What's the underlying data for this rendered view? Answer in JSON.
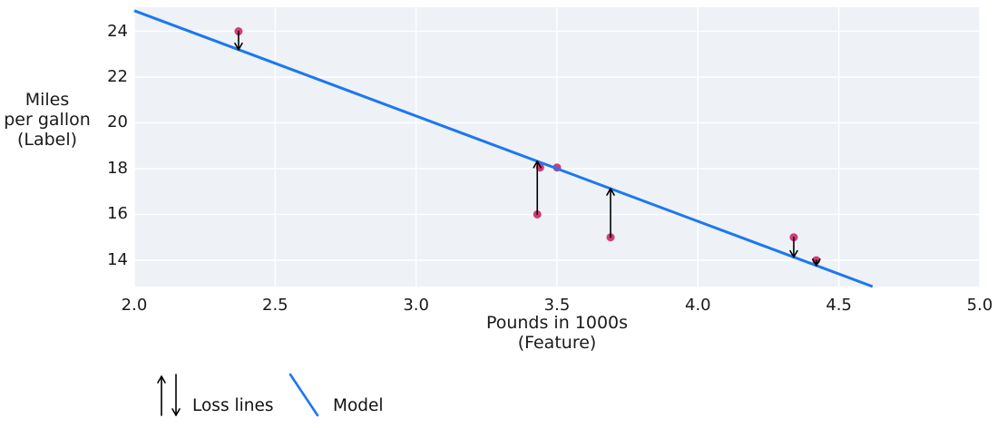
{
  "chart_data": {
    "type": "scatter",
    "xlabel_lines": [
      "Pounds in 1000s",
      "(Feature)"
    ],
    "ylabel_lines": [
      "Miles",
      "per gallon",
      "(Label)"
    ],
    "x_ticks": [
      {
        "v": 2.0,
        "label": "2.0"
      },
      {
        "v": 2.5,
        "label": "2.5"
      },
      {
        "v": 3.0,
        "label": "3.0"
      },
      {
        "v": 3.5,
        "label": "3.5"
      },
      {
        "v": 4.0,
        "label": "4.0"
      },
      {
        "v": 4.5,
        "label": "4.5"
      },
      {
        "v": 5.0,
        "label": "5.0"
      }
    ],
    "y_ticks": [
      {
        "v": 14,
        "label": "14"
      },
      {
        "v": 16,
        "label": "16"
      },
      {
        "v": 18,
        "label": "18"
      },
      {
        "v": 20,
        "label": "20"
      },
      {
        "v": 22,
        "label": "22"
      },
      {
        "v": 24,
        "label": "24"
      }
    ],
    "xlim": [
      2.0,
      5.0
    ],
    "ylim": [
      12.85,
      25.05
    ],
    "grid": true,
    "points": [
      {
        "x": 2.37,
        "y": 24.0,
        "loss_arrow": "down"
      },
      {
        "x": 3.43,
        "y": 16.0,
        "loss_arrow": "up"
      },
      {
        "x": 3.44,
        "y": 18.05,
        "loss_arrow": null
      },
      {
        "x": 3.5,
        "y": 18.05,
        "loss_arrow": null
      },
      {
        "x": 3.69,
        "y": 15.0,
        "loss_arrow": "up"
      },
      {
        "x": 4.34,
        "y": 15.0,
        "loss_arrow": "down"
      },
      {
        "x": 4.42,
        "y": 14.0,
        "loss_arrow": "down"
      }
    ],
    "model_line": {
      "slope": -4.6,
      "intercept": 34.1
    },
    "colors": {
      "point": "#d23c78",
      "model": "#1b78f0",
      "loss_arrow": "#000000",
      "plot_bg": "#eef1f6",
      "grid": "#ffffff",
      "text": "#1a1a1a"
    }
  },
  "legend": {
    "items": [
      {
        "icon": "loss-arrows-icon",
        "label": "Loss lines"
      },
      {
        "icon": "model-line-icon",
        "label": "Model"
      }
    ]
  }
}
